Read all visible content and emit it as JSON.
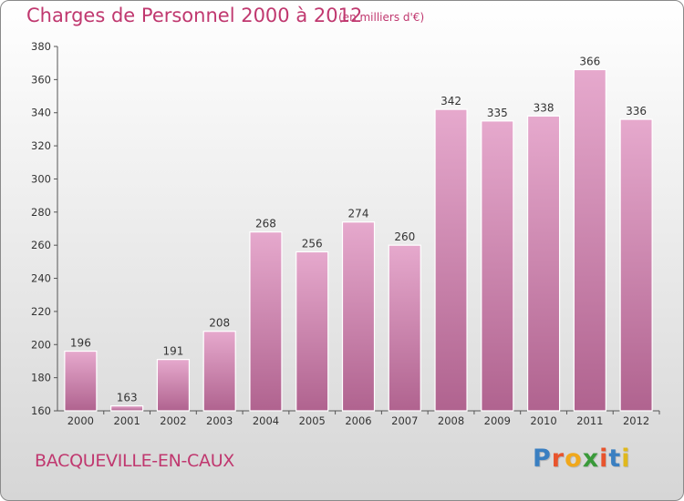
{
  "header": {
    "title": "Charges de Personnel 2000 à 2012",
    "subtitle": "(en milliers d'€)"
  },
  "footer": {
    "town": "BACQUEVILLE-EN-CAUX",
    "logo_text": "Proxiti"
  },
  "colors": {
    "accent": "#c0386f",
    "bar_top": "#e6a9cd",
    "bar_bottom": "#b0638f",
    "bar_edge": "#ffffff"
  },
  "chart_data": {
    "type": "bar",
    "title": "Charges de Personnel 2000 à 2012",
    "subtitle": "(en milliers d'€)",
    "categories": [
      "2000",
      "2001",
      "2002",
      "2003",
      "2004",
      "2005",
      "2006",
      "2007",
      "2008",
      "2009",
      "2010",
      "2011",
      "2012"
    ],
    "values": [
      196,
      163,
      191,
      208,
      268,
      256,
      274,
      260,
      342,
      335,
      338,
      366,
      336
    ],
    "data_labels": [
      "196",
      "163",
      "191",
      "208",
      "268",
      "256",
      "274",
      "260",
      "342",
      "335",
      "338",
      "366",
      "336"
    ],
    "yticks": [
      "160",
      "180",
      "200",
      "220",
      "240",
      "260",
      "280",
      "300",
      "320",
      "340",
      "360",
      "380"
    ],
    "ylim": [
      160,
      380
    ],
    "grid": false,
    "legend": "none"
  }
}
